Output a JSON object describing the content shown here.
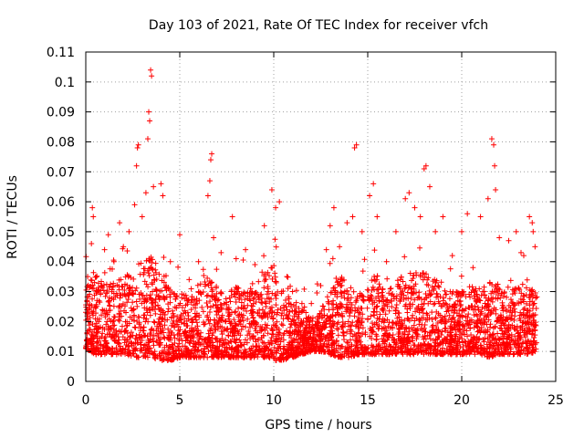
{
  "chart_data": {
    "type": "scatter",
    "title": "Day 103 of 2021, Rate Of TEC Index for receiver vfch",
    "xlabel": "GPS time / hours",
    "ylabel": "ROTI / TECUs",
    "xlim": [
      0,
      25
    ],
    "ylim": [
      0,
      0.11
    ],
    "x_ticks": [
      "0",
      "5",
      "10",
      "15",
      "20",
      "25"
    ],
    "y_ticks": [
      "0",
      "0.01",
      "0.02",
      "0.03",
      "0.04",
      "0.05",
      "0.06",
      "0.07",
      "0.08",
      "0.09",
      "0.1",
      "0.11"
    ],
    "grid": true,
    "marker": "+",
    "color": "#ff0000",
    "series": [
      {
        "name": "ROTI",
        "points": [
          [
            0.1,
            0.035
          ],
          [
            0.3,
            0.046
          ],
          [
            0.35,
            0.058
          ],
          [
            0.4,
            0.055
          ],
          [
            0.6,
            0.03
          ],
          [
            1.0,
            0.044
          ],
          [
            1.2,
            0.049
          ],
          [
            1.5,
            0.04
          ],
          [
            1.8,
            0.053
          ],
          [
            2.0,
            0.045
          ],
          [
            2.3,
            0.05
          ],
          [
            2.6,
            0.059
          ],
          [
            2.7,
            0.072
          ],
          [
            2.75,
            0.078
          ],
          [
            2.8,
            0.079
          ],
          [
            3.0,
            0.055
          ],
          [
            3.2,
            0.063
          ],
          [
            3.3,
            0.081
          ],
          [
            3.35,
            0.09
          ],
          [
            3.4,
            0.087
          ],
          [
            3.45,
            0.104
          ],
          [
            3.5,
            0.102
          ],
          [
            3.6,
            0.065
          ],
          [
            4.0,
            0.066
          ],
          [
            4.1,
            0.062
          ],
          [
            4.5,
            0.04
          ],
          [
            5.0,
            0.049
          ],
          [
            5.5,
            0.034
          ],
          [
            6.0,
            0.04
          ],
          [
            6.5,
            0.062
          ],
          [
            6.6,
            0.067
          ],
          [
            6.65,
            0.074
          ],
          [
            6.7,
            0.076
          ],
          [
            6.8,
            0.048
          ],
          [
            7.2,
            0.043
          ],
          [
            7.8,
            0.055
          ],
          [
            8.0,
            0.041
          ],
          [
            8.5,
            0.044
          ],
          [
            9.0,
            0.039
          ],
          [
            9.5,
            0.052
          ],
          [
            9.9,
            0.064
          ],
          [
            10.1,
            0.058
          ],
          [
            10.3,
            0.06
          ],
          [
            10.7,
            0.035
          ],
          [
            11.0,
            0.03
          ],
          [
            11.5,
            0.026
          ],
          [
            12.0,
            0.026
          ],
          [
            12.5,
            0.032
          ],
          [
            12.8,
            0.044
          ],
          [
            13.0,
            0.052
          ],
          [
            13.2,
            0.058
          ],
          [
            13.5,
            0.045
          ],
          [
            13.9,
            0.053
          ],
          [
            14.2,
            0.055
          ],
          [
            14.3,
            0.078
          ],
          [
            14.4,
            0.079
          ],
          [
            14.7,
            0.05
          ],
          [
            15.1,
            0.062
          ],
          [
            15.3,
            0.066
          ],
          [
            15.5,
            0.055
          ],
          [
            16.0,
            0.04
          ],
          [
            16.5,
            0.05
          ],
          [
            17.0,
            0.061
          ],
          [
            17.2,
            0.063
          ],
          [
            17.5,
            0.058
          ],
          [
            17.8,
            0.055
          ],
          [
            18.0,
            0.071
          ],
          [
            18.1,
            0.072
          ],
          [
            18.3,
            0.065
          ],
          [
            18.6,
            0.05
          ],
          [
            19.0,
            0.055
          ],
          [
            19.5,
            0.042
          ],
          [
            20.0,
            0.05
          ],
          [
            20.3,
            0.056
          ],
          [
            20.6,
            0.038
          ],
          [
            21.0,
            0.055
          ],
          [
            21.4,
            0.061
          ],
          [
            21.6,
            0.081
          ],
          [
            21.7,
            0.079
          ],
          [
            21.75,
            0.072
          ],
          [
            21.8,
            0.064
          ],
          [
            22.0,
            0.048
          ],
          [
            22.5,
            0.047
          ],
          [
            22.9,
            0.05
          ],
          [
            23.3,
            0.042
          ],
          [
            23.6,
            0.055
          ],
          [
            23.75,
            0.053
          ],
          [
            23.8,
            0.05
          ],
          [
            23.9,
            0.045
          ]
        ],
        "envelope_hours": [
          0,
          0.5,
          1,
          1.5,
          2,
          2.5,
          3,
          3.5,
          4,
          4.5,
          5,
          5.5,
          6,
          6.5,
          7,
          7.5,
          8,
          8.5,
          9,
          9.5,
          10,
          10.5,
          11,
          11.5,
          12,
          12.5,
          13,
          13.5,
          14,
          14.5,
          15,
          15.5,
          16,
          16.5,
          17,
          17.5,
          18,
          18.5,
          19,
          19.5,
          20,
          20.5,
          21,
          21.5,
          22,
          22.5,
          23,
          23.5,
          24
        ],
        "envelope_floor": [
          0.011,
          0.009,
          0.009,
          0.009,
          0.009,
          0.008,
          0.008,
          0.008,
          0.007,
          0.007,
          0.008,
          0.008,
          0.008,
          0.008,
          0.008,
          0.008,
          0.008,
          0.008,
          0.008,
          0.008,
          0.007,
          0.007,
          0.008,
          0.009,
          0.01,
          0.01,
          0.009,
          0.008,
          0.008,
          0.009,
          0.009,
          0.009,
          0.009,
          0.009,
          0.009,
          0.009,
          0.009,
          0.009,
          0.009,
          0.009,
          0.009,
          0.009,
          0.009,
          0.008,
          0.009,
          0.009,
          0.009,
          0.009,
          0.01
        ],
        "envelope_ceiling": [
          0.032,
          0.036,
          0.032,
          0.034,
          0.036,
          0.038,
          0.04,
          0.042,
          0.038,
          0.032,
          0.03,
          0.028,
          0.03,
          0.036,
          0.032,
          0.028,
          0.032,
          0.03,
          0.032,
          0.036,
          0.04,
          0.032,
          0.026,
          0.024,
          0.022,
          0.024,
          0.03,
          0.036,
          0.032,
          0.03,
          0.036,
          0.036,
          0.03,
          0.034,
          0.036,
          0.036,
          0.038,
          0.036,
          0.032,
          0.03,
          0.03,
          0.032,
          0.03,
          0.034,
          0.032,
          0.03,
          0.032,
          0.034,
          0.032
        ]
      }
    ]
  }
}
